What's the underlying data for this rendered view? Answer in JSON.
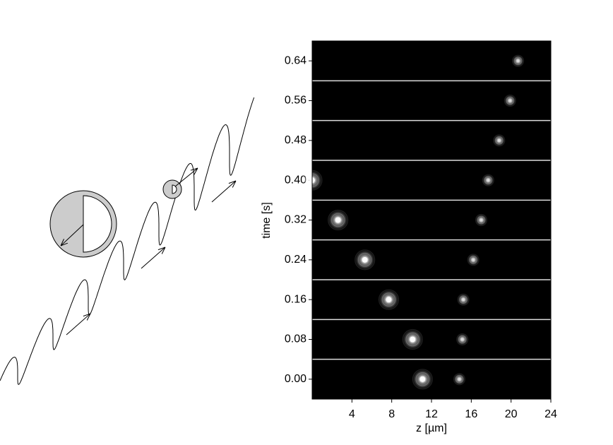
{
  "chart_data": {
    "type": "scatter",
    "xlabel": "z [µm]",
    "ylabel": "time [s]",
    "xlim": [
      0,
      24
    ],
    "xticks": [
      4,
      8,
      12,
      16,
      20,
      24
    ],
    "ylim": [
      -0.04,
      0.68
    ],
    "yticks": [
      {
        "value": 0,
        "label": "0.00"
      },
      0.08,
      0.16,
      0.24,
      0.32,
      {
        "value": 0.4,
        "label": "0.40"
      },
      0.48,
      0.56,
      0.64
    ],
    "background": "#000",
    "series": [
      {
        "color": "#ffffff",
        "x": [
          11.1,
          10.1,
          7.7,
          5.3,
          2.6,
          0
        ],
        "values": [
          0,
          0.08,
          0.16,
          0.24,
          0.32,
          0.4
        ]
      },
      {
        "color": "#dddddd",
        "x": [
          14.8,
          15.1,
          15.2,
          16.2,
          17.0,
          17.7,
          18.8,
          19.9,
          20.7
        ],
        "values": [
          0,
          0.08,
          0.16,
          0.24,
          0.32,
          0.4,
          0.48,
          0.56,
          0.64
        ]
      }
    ]
  }
}
